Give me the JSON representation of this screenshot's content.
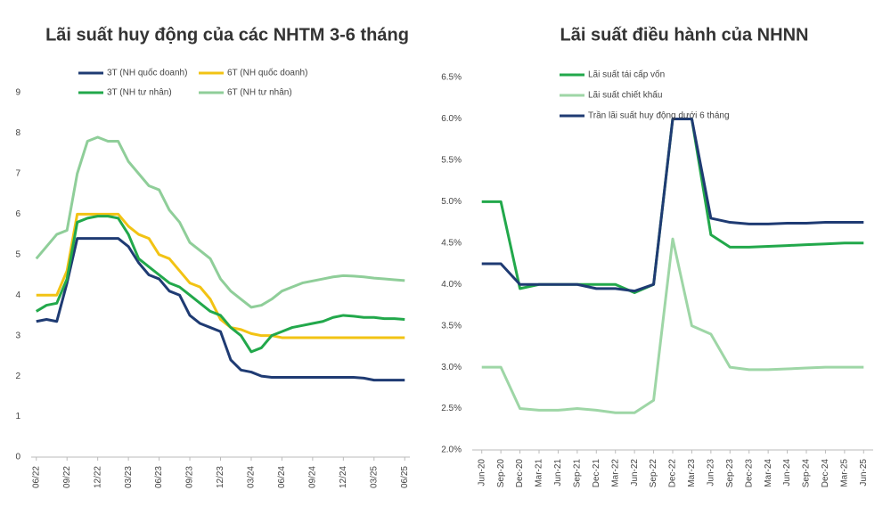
{
  "chart_data": [
    {
      "type": "line",
      "title": "Lãi suất huy động của các NHTM 3-6 tháng",
      "categories": [
        "06/22",
        null,
        null,
        "09/22",
        null,
        null,
        "12/22",
        null,
        null,
        "03/23",
        null,
        null,
        "06/23",
        null,
        null,
        "09/23",
        null,
        null,
        "12/23",
        null,
        null,
        "03/24",
        null,
        null,
        "06/24",
        null,
        null,
        "09/24",
        null,
        null,
        "12/24",
        null,
        null,
        "03/25",
        null,
        null,
        "06/25"
      ],
      "ylim": [
        0,
        9
      ],
      "yticks": [
        0,
        1,
        2,
        3,
        4,
        5,
        6,
        7,
        8,
        9
      ],
      "grid": false,
      "series": [
        {
          "name": "3T (NH quốc doanh)",
          "color": "#1f3b73",
          "values": [
            3.35,
            3.4,
            3.35,
            4.3,
            5.4,
            5.4,
            5.4,
            5.4,
            5.4,
            5.2,
            4.8,
            4.5,
            4.4,
            4.1,
            4.0,
            3.5,
            3.3,
            3.2,
            3.1,
            2.4,
            2.15,
            2.1,
            2.0,
            1.97,
            1.97,
            1.97,
            1.97,
            1.97,
            1.97,
            1.97,
            1.97,
            1.97,
            1.95,
            1.9,
            1.9,
            1.9,
            1.9
          ]
        },
        {
          "name": "6T (NH quốc doanh)",
          "color": "#f2c314",
          "values": [
            4.0,
            4.0,
            4.0,
            4.6,
            6.0,
            6.0,
            6.0,
            6.0,
            6.0,
            5.7,
            5.5,
            5.4,
            5.0,
            4.9,
            4.6,
            4.3,
            4.2,
            3.9,
            3.4,
            3.2,
            3.15,
            3.05,
            3.0,
            3.0,
            2.95,
            2.95,
            2.95,
            2.95,
            2.95,
            2.95,
            2.95,
            2.95,
            2.95,
            2.95,
            2.95,
            2.95,
            2.95
          ]
        },
        {
          "name": "3T (NH tư nhân)",
          "color": "#22a84b",
          "values": [
            3.6,
            3.75,
            3.8,
            4.4,
            5.8,
            5.9,
            5.95,
            5.95,
            5.9,
            5.5,
            4.9,
            4.7,
            4.5,
            4.3,
            4.2,
            4.0,
            3.8,
            3.6,
            3.5,
            3.2,
            3.0,
            2.6,
            2.7,
            3.0,
            3.1,
            3.2,
            3.25,
            3.3,
            3.35,
            3.45,
            3.5,
            3.48,
            3.45,
            3.45,
            3.42,
            3.42,
            3.4
          ]
        },
        {
          "name": "6T (NH tư nhân)",
          "color": "#8fce99",
          "values": [
            4.9,
            5.2,
            5.5,
            5.6,
            7.0,
            7.8,
            7.9,
            7.8,
            7.8,
            7.3,
            7.0,
            6.7,
            6.6,
            6.1,
            5.8,
            5.3,
            5.1,
            4.9,
            4.4,
            4.1,
            3.9,
            3.7,
            3.75,
            3.9,
            4.1,
            4.2,
            4.3,
            4.35,
            4.4,
            4.45,
            4.48,
            4.47,
            4.45,
            4.42,
            4.4,
            4.38,
            4.36
          ]
        }
      ]
    },
    {
      "type": "line",
      "title": "Lãi suất điều hành của NHNN",
      "categories": [
        "Jun-20",
        "Sep-20",
        "Dec-20",
        "Mar-21",
        "Jun-21",
        "Sep-21",
        "Dec-21",
        "Mar-22",
        "Jun-22",
        "Sep-22",
        "Dec-22",
        "Mar-23",
        "Jun-23",
        "Sep-23",
        "Dec-23",
        "Mar-24",
        "Jun-24",
        "Sep-24",
        "Dec-24",
        "Mar-25",
        "Jun-25"
      ],
      "ylim": [
        2.0,
        6.5
      ],
      "yticks": [
        {
          "value": 2.0,
          "label": "2.0%"
        },
        {
          "value": 2.5,
          "label": "2.5%"
        },
        {
          "value": 3.0,
          "label": "3.0%"
        },
        {
          "value": 3.5,
          "label": "3.5%"
        },
        {
          "value": 4.0,
          "label": "4.0%"
        },
        {
          "value": 4.5,
          "label": "4.5%"
        },
        {
          "value": 5.0,
          "label": "5.0%"
        },
        {
          "value": 5.5,
          "label": "5.5%"
        },
        {
          "value": 6.0,
          "label": "6.0%"
        },
        {
          "value": 6.5,
          "label": "6.5%"
        }
      ],
      "grid": false,
      "series": [
        {
          "name": "Lãi suất tái cấp vốn",
          "color": "#22a84b",
          "values": [
            5.0,
            5.0,
            3.95,
            4.0,
            4.0,
            4.0,
            4.0,
            4.0,
            3.9,
            4.0,
            6.0,
            6.0,
            4.6,
            4.45,
            4.45,
            4.46,
            4.47,
            4.48,
            4.49,
            4.5,
            4.5
          ]
        },
        {
          "name": "Lãi suất chiết khấu",
          "color": "#9ed6a6",
          "values": [
            3.0,
            3.0,
            2.5,
            2.48,
            2.48,
            2.5,
            2.48,
            2.45,
            2.45,
            2.6,
            4.55,
            3.5,
            3.4,
            3.0,
            2.97,
            2.97,
            2.98,
            2.99,
            3.0,
            3.0,
            3.0
          ]
        },
        {
          "name": "Trần lãi suất huy động dưới 6 tháng",
          "color": "#1f3b73",
          "values": [
            4.25,
            4.25,
            4.0,
            4.0,
            4.0,
            4.0,
            3.95,
            3.95,
            3.92,
            4.0,
            6.0,
            6.0,
            4.8,
            4.75,
            4.73,
            4.73,
            4.74,
            4.74,
            4.75,
            4.75,
            4.75
          ]
        }
      ]
    }
  ]
}
